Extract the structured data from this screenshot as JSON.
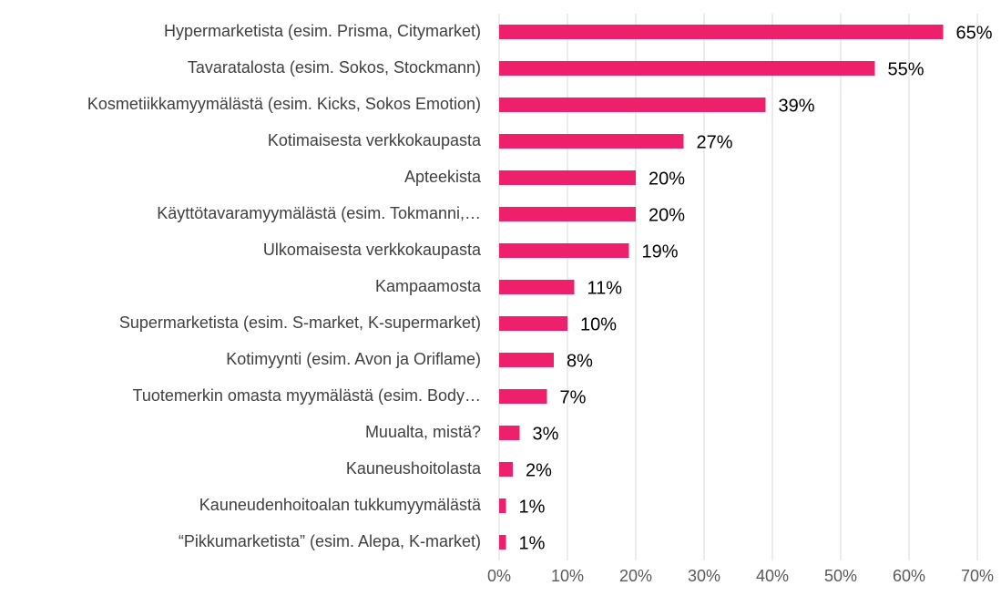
{
  "chart_data": {
    "type": "bar",
    "orientation": "horizontal",
    "categories": [
      "Hypermarketista (esim. Prisma, Citymarket)",
      "Tavaratalosta (esim. Sokos, Stockmann)",
      "Kosmetiikkamyymälästä (esim. Kicks, Sokos Emotion)",
      "Kotimaisesta verkkokaupasta",
      "Apteekista",
      "Käyttötavaramyymälästä (esim. Tokmanni,…",
      "Ulkomaisesta verkkokaupasta",
      "Kampaamosta",
      "Supermarketista (esim. S-market, K-supermarket)",
      "Kotimyynti (esim. Avon ja Oriflame)",
      "Tuotemerkin omasta myymälästä (esim. Body…",
      "Muualta, mistä?",
      "Kauneushoitolasta",
      "Kauneudenhoitoalan tukkumyymälästä",
      "“Pikkumarketista” (esim. Alepa, K-market)"
    ],
    "values": [
      65,
      55,
      39,
      27,
      20,
      20,
      19,
      11,
      10,
      8,
      7,
      3,
      2,
      1,
      1
    ],
    "value_labels": [
      "65%",
      "55%",
      "39%",
      "27%",
      "20%",
      "20%",
      "19%",
      "11%",
      "10%",
      "8%",
      "7%",
      "3%",
      "2%",
      "1%",
      "1%"
    ],
    "color": "#ee1f6b",
    "xlim": [
      0,
      70
    ],
    "xticks": [
      {
        "value": 0,
        "label": "0%"
      },
      {
        "value": 10,
        "label": "10%"
      },
      {
        "value": 20,
        "label": "20%"
      },
      {
        "value": 30,
        "label": "30%"
      },
      {
        "value": 40,
        "label": "40%"
      },
      {
        "value": 50,
        "label": "50%"
      },
      {
        "value": 60,
        "label": "60%"
      },
      {
        "value": 70,
        "label": "70%"
      }
    ],
    "grid": true
  }
}
